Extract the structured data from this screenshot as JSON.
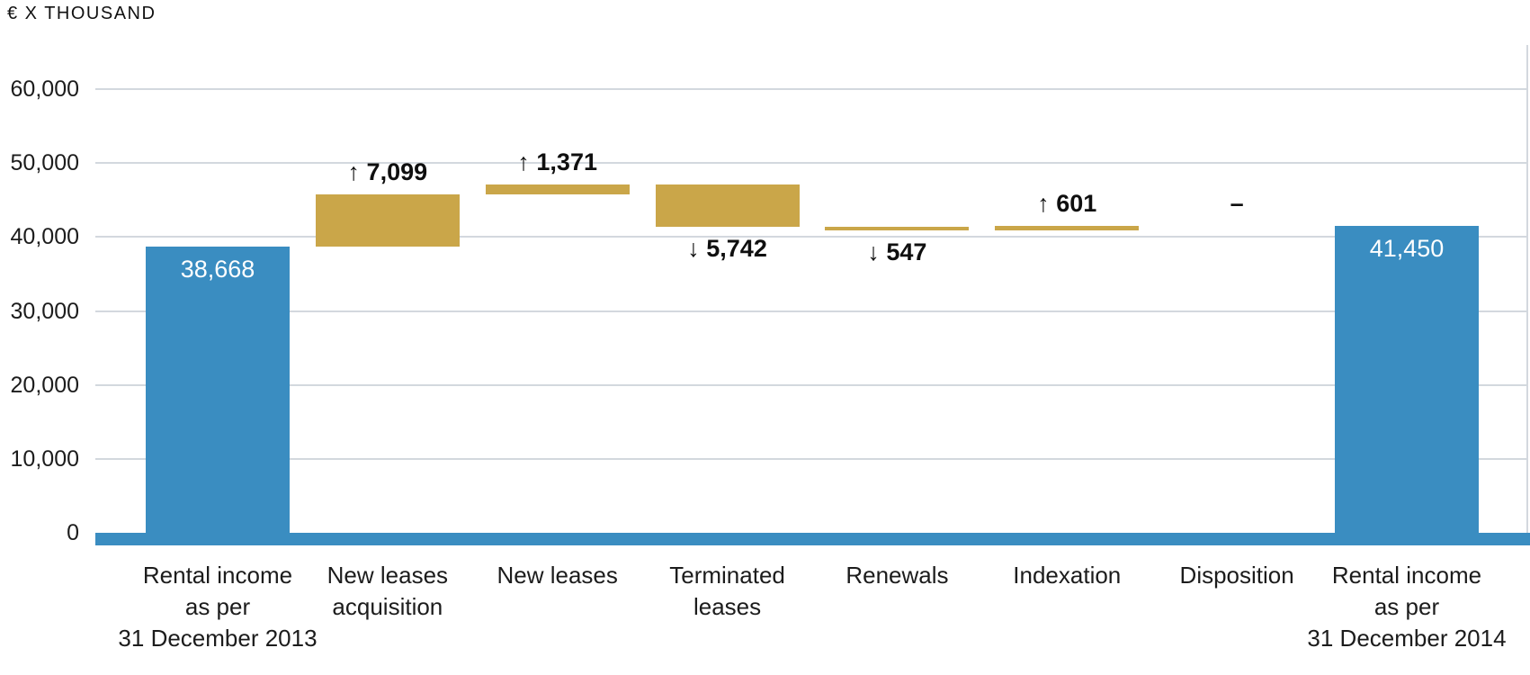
{
  "unit_label": "€ X THOUSAND",
  "colors": {
    "total_bar": "#3a8dc1",
    "delta_bar": "#caa649",
    "gridline": "#d3d8de",
    "axis_line": "#3a8dc1",
    "value_label_text": "#ffffff",
    "text": "#1c1c1c"
  },
  "chart_data": {
    "type": "bar",
    "variant": "waterfall",
    "title": "",
    "ylabel": "€ X THOUSAND",
    "xlabel": "",
    "ylim": [
      0,
      60000
    ],
    "ytick_interval": 10000,
    "ytick_labels": [
      "60,000",
      "50,000",
      "40,000",
      "30,000",
      "20,000",
      "10,000",
      "0"
    ],
    "grid": true,
    "legend": false,
    "columns": [
      {
        "label_lines": [
          "Rental income",
          "as per",
          "31 December 2013"
        ],
        "kind": "total",
        "value": 38668,
        "display": "38,668"
      },
      {
        "label_lines": [
          "New leases",
          "acquisition"
        ],
        "kind": "delta",
        "value": 7099,
        "display": "7,099",
        "arrow": "↑"
      },
      {
        "label_lines": [
          "New leases"
        ],
        "kind": "delta",
        "value": 1371,
        "display": "1,371",
        "arrow": "↑"
      },
      {
        "label_lines": [
          "Terminated",
          "leases"
        ],
        "kind": "delta",
        "value": -5742,
        "display": "5,742",
        "arrow": "↓"
      },
      {
        "label_lines": [
          "Renewals"
        ],
        "kind": "delta",
        "value": -547,
        "display": "547",
        "arrow": "↓"
      },
      {
        "label_lines": [
          "Indexation"
        ],
        "kind": "delta",
        "value": 601,
        "display": "601",
        "arrow": "↑"
      },
      {
        "label_lines": [
          "Disposition"
        ],
        "kind": "delta",
        "value": 0,
        "display": "–",
        "arrow": ""
      },
      {
        "label_lines": [
          "Rental income",
          "as per",
          "31 December 2014"
        ],
        "kind": "total",
        "value": 41450,
        "display": "41,450"
      }
    ]
  }
}
